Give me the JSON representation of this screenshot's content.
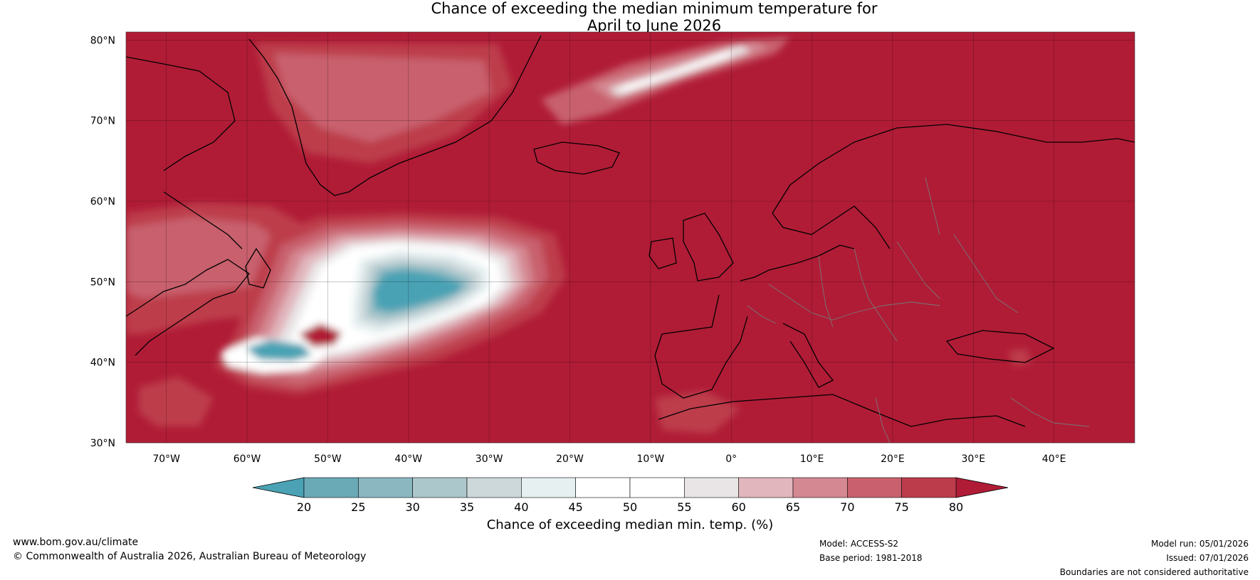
{
  "title": {
    "line1": "Chance of exceeding the median minimum temperature for",
    "line2": "April to June 2026"
  },
  "map": {
    "extent": {
      "lon_min": -75,
      "lon_max": 50,
      "lat_min": 30,
      "lat_max": 81
    },
    "lat_ticks": [
      {
        "value": 80,
        "label": "80°N"
      },
      {
        "value": 70,
        "label": "70°N"
      },
      {
        "value": 60,
        "label": "60°N"
      },
      {
        "value": 50,
        "label": "50°N"
      },
      {
        "value": 40,
        "label": "40°N"
      },
      {
        "value": 30,
        "label": "30°N"
      }
    ],
    "lon_ticks": [
      {
        "value": -70,
        "label": "70°W"
      },
      {
        "value": -60,
        "label": "60°W"
      },
      {
        "value": -50,
        "label": "50°W"
      },
      {
        "value": -40,
        "label": "40°W"
      },
      {
        "value": -30,
        "label": "30°W"
      },
      {
        "value": -20,
        "label": "20°W"
      },
      {
        "value": -10,
        "label": "10°W"
      },
      {
        "value": 0,
        "label": "0°"
      },
      {
        "value": 10,
        "label": "10°E"
      },
      {
        "value": 20,
        "label": "20°E"
      },
      {
        "value": 30,
        "label": "30°E"
      },
      {
        "value": 40,
        "label": "40°E"
      }
    ],
    "background_value": 80
  },
  "colorbar": {
    "levels": [
      20,
      25,
      30,
      35,
      40,
      45,
      50,
      55,
      60,
      65,
      70,
      75,
      80
    ],
    "colors": [
      "#6aa9b6",
      "#8bb7c1",
      "#abc7cc",
      "#cdd8db",
      "#e6f0f1",
      "#ffffff",
      "#ffffff",
      "#e9e5e6",
      "#e1b6bd",
      "#d48892",
      "#c8616d",
      "#bd3c4c"
    ],
    "under_color": "#4aa2b4",
    "over_color": "#b01c36",
    "label": "Chance of exceeding median min. temp. (%)"
  },
  "footer": {
    "website": "www.bom.gov.au/climate",
    "copyright": "© Commonwealth of Australia 2026, Australian Bureau of Meteorology",
    "model": "Model: ACCESS-S2",
    "base_period": "Base period: 1981-2018",
    "model_run": "Model run: 05/01/2026",
    "issued": "Issued: 07/01/2026",
    "disclaimer": "Boundaries are not considered authoritative"
  }
}
